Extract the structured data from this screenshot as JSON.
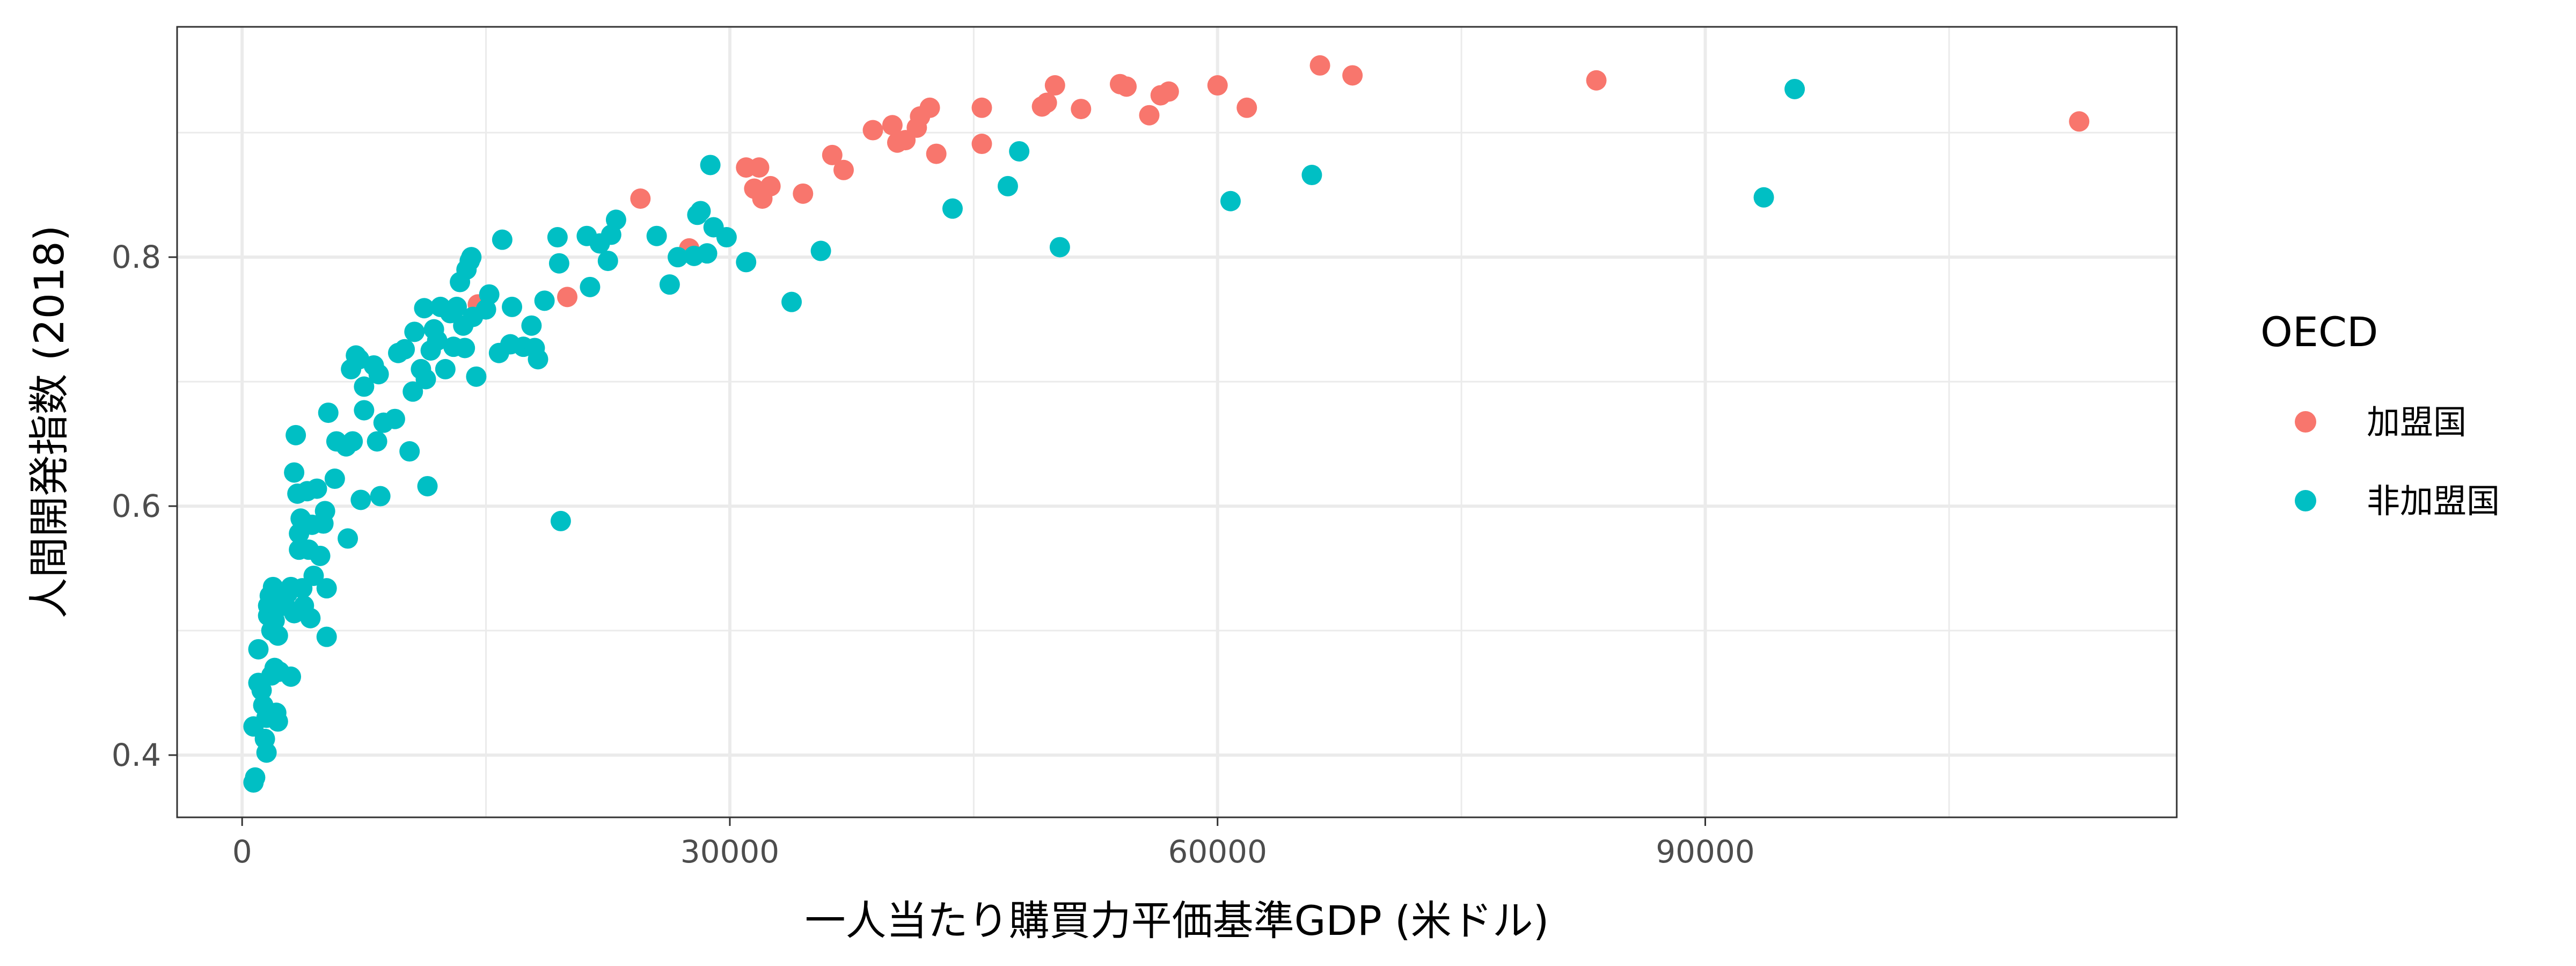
{
  "chart_data": {
    "type": "scatter",
    "xlabel": "一人当たり購買力平価基準GDP (米ドル)",
    "ylabel": "人間開発指数 (2018)",
    "xlim": [
      -4000,
      119000
    ],
    "ylim": [
      0.35,
      0.985
    ],
    "x_ticks": [
      0,
      30000,
      60000,
      90000
    ],
    "x_tick_labels": [
      "0",
      "30000",
      "60000",
      "90000"
    ],
    "y_ticks": [
      0.4,
      0.6,
      0.8
    ],
    "y_tick_labels": [
      "0.4",
      "0.6",
      "0.8"
    ],
    "grid": true,
    "legend": {
      "title": "OECD",
      "position": "right",
      "entries": [
        {
          "label": "加盟国",
          "color": "#F8766D"
        },
        {
          "label": "非加盟国",
          "color": "#00BFC4"
        }
      ]
    },
    "series": [
      {
        "name": "加盟国",
        "color": "#F8766D",
        "points": [
          [
            14500,
            0.762
          ],
          [
            20000,
            0.768
          ],
          [
            24500,
            0.847
          ],
          [
            27500,
            0.807
          ],
          [
            31000,
            0.872
          ],
          [
            31500,
            0.855
          ],
          [
            31800,
            0.872
          ],
          [
            32000,
            0.847
          ],
          [
            32500,
            0.857
          ],
          [
            34500,
            0.851
          ],
          [
            36300,
            0.882
          ],
          [
            37000,
            0.87
          ],
          [
            38800,
            0.902
          ],
          [
            40000,
            0.906
          ],
          [
            40300,
            0.892
          ],
          [
            40800,
            0.894
          ],
          [
            41500,
            0.904
          ],
          [
            41700,
            0.913
          ],
          [
            42300,
            0.92
          ],
          [
            42700,
            0.883
          ],
          [
            45500,
            0.92
          ],
          [
            45500,
            0.891
          ],
          [
            49200,
            0.921
          ],
          [
            49500,
            0.924
          ],
          [
            50000,
            0.938
          ],
          [
            51600,
            0.919
          ],
          [
            54000,
            0.939
          ],
          [
            54400,
            0.937
          ],
          [
            55800,
            0.914
          ],
          [
            56500,
            0.93
          ],
          [
            57000,
            0.933
          ],
          [
            60000,
            0.938
          ],
          [
            61800,
            0.92
          ],
          [
            66300,
            0.954
          ],
          [
            68300,
            0.946
          ],
          [
            83300,
            0.942
          ],
          [
            113000,
            0.909
          ]
        ]
      },
      {
        "name": "非加盟国",
        "color": "#00BFC4",
        "points": [
          [
            700,
            0.378
          ],
          [
            800,
            0.382
          ],
          [
            700,
            0.423
          ],
          [
            1000,
            0.458
          ],
          [
            1000,
            0.485
          ],
          [
            1200,
            0.452
          ],
          [
            1300,
            0.44
          ],
          [
            1400,
            0.413
          ],
          [
            1500,
            0.402
          ],
          [
            1500,
            0.43
          ],
          [
            1600,
            0.52
          ],
          [
            1600,
            0.512
          ],
          [
            1700,
            0.528
          ],
          [
            1800,
            0.464
          ],
          [
            1800,
            0.5
          ],
          [
            1900,
            0.535
          ],
          [
            2000,
            0.508
          ],
          [
            2000,
            0.47
          ],
          [
            2100,
            0.434
          ],
          [
            2200,
            0.496
          ],
          [
            2200,
            0.427
          ],
          [
            2300,
            0.467
          ],
          [
            2500,
            0.52
          ],
          [
            2600,
            0.522
          ],
          [
            2800,
            0.53
          ],
          [
            3000,
            0.535
          ],
          [
            3000,
            0.463
          ],
          [
            3200,
            0.627
          ],
          [
            3200,
            0.514
          ],
          [
            3300,
            0.657
          ],
          [
            3400,
            0.61
          ],
          [
            3500,
            0.578
          ],
          [
            3500,
            0.565
          ],
          [
            3600,
            0.59
          ],
          [
            3700,
            0.534
          ],
          [
            3800,
            0.52
          ],
          [
            3900,
            0.586
          ],
          [
            4000,
            0.612
          ],
          [
            4100,
            0.565
          ],
          [
            4200,
            0.51
          ],
          [
            4300,
            0.585
          ],
          [
            4400,
            0.544
          ],
          [
            4600,
            0.614
          ],
          [
            4800,
            0.56
          ],
          [
            5000,
            0.586
          ],
          [
            5100,
            0.596
          ],
          [
            5200,
            0.534
          ],
          [
            5200,
            0.495
          ],
          [
            5300,
            0.675
          ],
          [
            5700,
            0.622
          ],
          [
            5800,
            0.652
          ],
          [
            6400,
            0.648
          ],
          [
            6500,
            0.574
          ],
          [
            6700,
            0.71
          ],
          [
            6800,
            0.652
          ],
          [
            7000,
            0.721
          ],
          [
            7200,
            0.718
          ],
          [
            7300,
            0.605
          ],
          [
            7500,
            0.677
          ],
          [
            7500,
            0.696
          ],
          [
            8100,
            0.713
          ],
          [
            8300,
            0.652
          ],
          [
            8400,
            0.706
          ],
          [
            8500,
            0.608
          ],
          [
            8700,
            0.667
          ],
          [
            9400,
            0.67
          ],
          [
            9600,
            0.723
          ],
          [
            10000,
            0.726
          ],
          [
            10300,
            0.644
          ],
          [
            10500,
            0.692
          ],
          [
            10600,
            0.74
          ],
          [
            11000,
            0.71
          ],
          [
            11200,
            0.759
          ],
          [
            11300,
            0.702
          ],
          [
            11400,
            0.616
          ],
          [
            11600,
            0.725
          ],
          [
            11800,
            0.742
          ],
          [
            12000,
            0.733
          ],
          [
            12200,
            0.76
          ],
          [
            12500,
            0.71
          ],
          [
            12800,
            0.755
          ],
          [
            13000,
            0.728
          ],
          [
            13200,
            0.76
          ],
          [
            13400,
            0.78
          ],
          [
            13600,
            0.745
          ],
          [
            13700,
            0.727
          ],
          [
            13800,
            0.79
          ],
          [
            14000,
            0.797
          ],
          [
            14100,
            0.8
          ],
          [
            14200,
            0.752
          ],
          [
            14400,
            0.704
          ],
          [
            15000,
            0.758
          ],
          [
            15200,
            0.77
          ],
          [
            15800,
            0.723
          ],
          [
            16000,
            0.814
          ],
          [
            16500,
            0.73
          ],
          [
            16600,
            0.76
          ],
          [
            17300,
            0.728
          ],
          [
            17800,
            0.745
          ],
          [
            18000,
            0.727
          ],
          [
            18200,
            0.718
          ],
          [
            18600,
            0.765
          ],
          [
            19400,
            0.816
          ],
          [
            19500,
            0.795
          ],
          [
            19600,
            0.588
          ],
          [
            21200,
            0.817
          ],
          [
            21400,
            0.776
          ],
          [
            22000,
            0.811
          ],
          [
            22500,
            0.797
          ],
          [
            22700,
            0.818
          ],
          [
            23000,
            0.83
          ],
          [
            25500,
            0.817
          ],
          [
            26300,
            0.778
          ],
          [
            26800,
            0.8
          ],
          [
            27800,
            0.801
          ],
          [
            28000,
            0.834
          ],
          [
            28200,
            0.837
          ],
          [
            28600,
            0.803
          ],
          [
            28800,
            0.874
          ],
          [
            29000,
            0.824
          ],
          [
            29800,
            0.816
          ],
          [
            31000,
            0.796
          ],
          [
            33800,
            0.764
          ],
          [
            35600,
            0.805
          ],
          [
            43700,
            0.839
          ],
          [
            47100,
            0.857
          ],
          [
            47800,
            0.885
          ],
          [
            50300,
            0.808
          ],
          [
            60800,
            0.845
          ],
          [
            65800,
            0.866
          ],
          [
            93600,
            0.848
          ],
          [
            95500,
            0.935
          ]
        ]
      }
    ]
  }
}
